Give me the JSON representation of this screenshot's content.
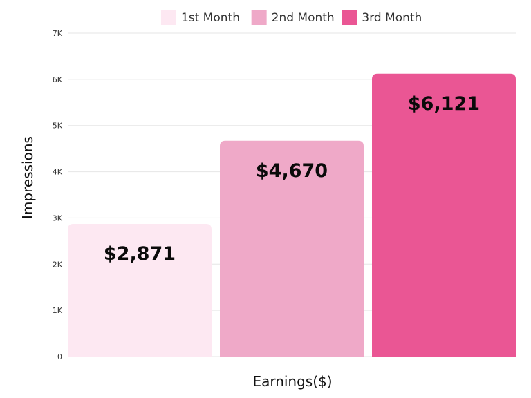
{
  "chart_data": {
    "type": "bar",
    "categories": [
      "1st Month",
      "2nd Month",
      "3rd Month"
    ],
    "values": [
      2871,
      4670,
      6121
    ],
    "data_labels": [
      "$2,871",
      "$4,670",
      "$6,121"
    ],
    "colors": [
      "#fde8f2",
      "#efa9c8",
      "#ea5694"
    ],
    "title": "",
    "xlabel": "Earnings($)",
    "ylabel": "Impressions",
    "ylim": [
      0,
      7000
    ],
    "yticks": [
      0,
      1000,
      2000,
      3000,
      4000,
      5000,
      6000,
      7000
    ],
    "ytick_labels": [
      "0",
      "1K",
      "2K",
      "3K",
      "4K",
      "5K",
      "6K",
      "7K"
    ],
    "grid": true,
    "legend": {
      "position": "top-center",
      "entries": [
        "1st Month",
        "2nd Month",
        "3rd Month"
      ]
    }
  }
}
